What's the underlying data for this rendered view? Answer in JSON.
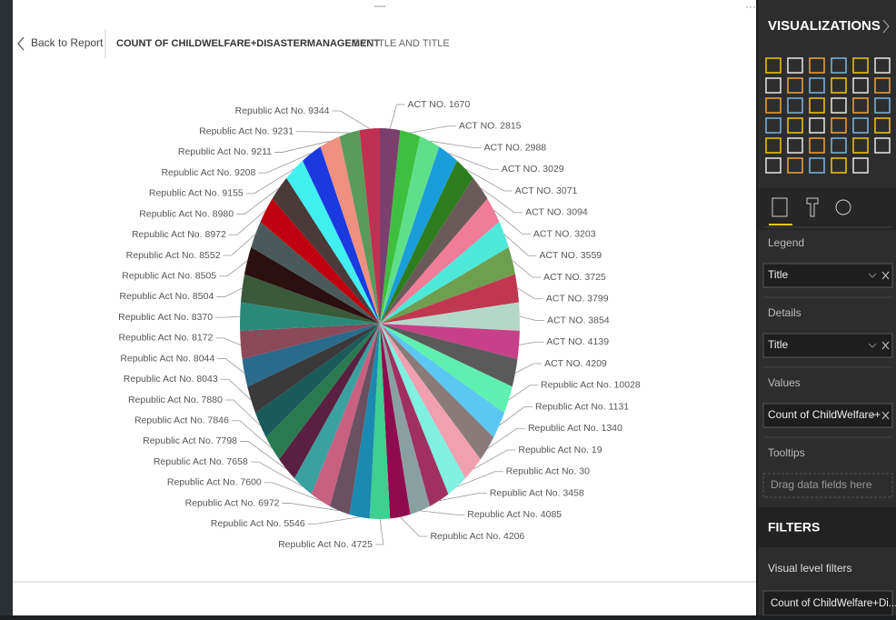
{
  "header": {
    "back": "Back to Report",
    "title": "COUNT OF CHILDWELFARE+DISASTERMANAGEMENT",
    "subtitle": "BY TITLE AND TITLE"
  },
  "chart_data": {
    "type": "pie",
    "categories": [
      "ACT NO. 1670",
      "ACT NO. 2815",
      "ACT NO. 2988",
      "ACT NO. 3029",
      "ACT NO. 3071",
      "ACT NO. 3094",
      "ACT NO. 3203",
      "ACT NO. 3559",
      "ACT NO. 3725",
      "ACT NO. 3799",
      "ACT NO. 3854",
      "ACT NO. 4139",
      "ACT NO. 4209",
      "Republic Act No. 10028",
      "Republic Act No. 1131",
      "Republic Act No. 1340",
      "Republic Act No. 19",
      "Republic Act No. 30",
      "Republic Act No. 3458",
      "Republic Act No. 4085",
      "Republic Act No. 4206",
      "Republic Act No. 4725",
      "Republic Act No. 5546",
      "Republic Act No. 6972",
      "Republic Act No. 7600",
      "Republic Act No. 7658",
      "Republic Act No. 7798",
      "Republic Act No. 7846",
      "Republic Act No. 7880",
      "Republic Act No. 8043",
      "Republic Act No. 8044",
      "Republic Act No. 8172",
      "Republic Act No. 8370",
      "Republic Act No. 8504",
      "Republic Act No. 8505",
      "Republic Act No. 8552",
      "Republic Act No. 8972",
      "Republic Act No. 8980",
      "Republic Act No. 9155",
      "Republic Act No. 9208",
      "Republic Act No. 9211",
      "Republic Act No. 9231",
      "Republic Act No. 9344"
    ],
    "values": [
      1,
      1,
      1,
      1,
      1,
      1,
      1,
      1,
      1,
      1,
      1,
      1,
      1,
      1,
      1,
      1,
      1,
      1,
      1,
      1,
      1,
      1,
      1,
      1,
      1,
      1,
      1,
      1,
      1,
      1,
      1,
      1,
      1,
      1,
      1,
      1,
      1,
      1,
      1,
      1,
      1,
      1,
      1
    ],
    "colors": [
      "#7b3f6e",
      "#3fbf3f",
      "#5ee08a",
      "#1a9ed9",
      "#2e7d1f",
      "#6b5a5a",
      "#f07c9a",
      "#4de8d8",
      "#6e9e4f",
      "#c0384f",
      "#b5d7c9",
      "#c8408a",
      "#5a5a5a",
      "#5ef0b0",
      "#5ac8f0",
      "#8a7a7a",
      "#f0a0b0",
      "#80f0e0",
      "#a03060",
      "#8aa0a0",
      "#900a50",
      "#3fcf8f",
      "#1a8ab0",
      "#6a5060",
      "#c86080",
      "#3aa0a0",
      "#5a2040",
      "#2a7a50",
      "#1a5a5a",
      "#3a3a3a",
      "#2a6a8a",
      "#8a4a5a",
      "#2a8a7a",
      "#3a5a3a",
      "#2a1010",
      "#4a5a5a",
      "#c00010",
      "#4a3a3a",
      "#40f0f0",
      "#1a3ae0",
      "#f09080",
      "#5a9a5a",
      "#c03050"
    ]
  },
  "panel": {
    "title": "VISUALIZATIONS",
    "wells": [
      {
        "label": "Legend",
        "field": "Title"
      },
      {
        "label": "Details",
        "field": "Title"
      },
      {
        "label": "Values",
        "field": "Count of ChildWelfare+"
      },
      {
        "label": "Tooltips",
        "placeholder": "Drag data fields here"
      }
    ]
  },
  "filters": {
    "title": "FILTERS",
    "section": "Visual level filters",
    "field": "Count of ChildWelfare+Di..."
  }
}
